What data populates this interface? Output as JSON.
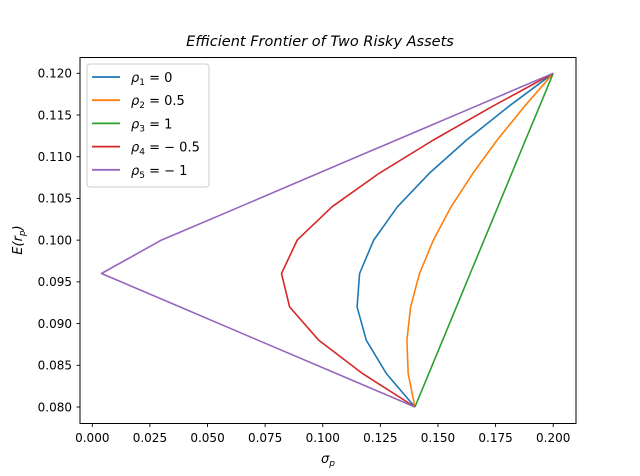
{
  "chart_data": {
    "type": "line",
    "title": "Efficient Frontier of Two Risky Assets",
    "xlabel": "σp",
    "ylabel": "E(rp)",
    "xlim": [
      -0.0098,
      0.2098
    ],
    "ylim": [
      0.078,
      0.122
    ],
    "xticks": [
      "0.000",
      "0.025",
      "0.050",
      "0.075",
      "0.100",
      "0.125",
      "0.150",
      "0.175",
      "0.200"
    ],
    "yticks": [
      "0.080",
      "0.085",
      "0.090",
      "0.095",
      "0.100",
      "0.105",
      "0.110",
      "0.115",
      "0.120"
    ],
    "grid": false,
    "legend_position": "upper left",
    "y": [
      0.08,
      0.084,
      0.088,
      0.092,
      0.096,
      0.1,
      0.104,
      0.108,
      0.112,
      0.116,
      0.12
    ],
    "series": [
      {
        "name": "ρ1 = 0",
        "label_sym": "ρ",
        "label_sub": "1",
        "label_rest": " = 0",
        "color": "#1f77b4",
        "x": [
          0.14,
          0.1276,
          0.1189,
          0.1149,
          0.116,
          0.1221,
          0.1324,
          0.1462,
          0.1624,
          0.1805,
          0.2
        ]
      },
      {
        "name": "ρ2 = 0.5",
        "label_sym": "ρ",
        "label_sub": "2",
        "label_rest": " = 0.5",
        "color": "#ff7f0e",
        "x": [
          0.14,
          0.1371,
          0.1365,
          0.1381,
          0.142,
          0.148,
          0.1557,
          0.1651,
          0.1757,
          0.1874,
          0.2
        ]
      },
      {
        "name": "ρ3 = 1",
        "label_sym": "ρ",
        "label_sub": "3",
        "label_rest": " = 1",
        "color": "#2ca02c",
        "x": [
          0.14,
          0.146,
          0.152,
          0.158,
          0.164,
          0.17,
          0.176,
          0.182,
          0.188,
          0.194,
          0.2
        ]
      },
      {
        "name": "ρ4 = −0.5",
        "label_sym": "ρ",
        "label_sub": "4",
        "label_rest": " = − 0.5",
        "color": "#d62728",
        "x": [
          0.14,
          0.1173,
          0.0983,
          0.0856,
          0.0821,
          0.0889,
          0.104,
          0.1244,
          0.148,
          0.1734,
          0.2
        ]
      },
      {
        "name": "ρ5 = −1",
        "label_sym": "ρ",
        "label_sub": "5",
        "label_rest": " = − 1",
        "color": "#9467bd",
        "x": [
          0.14,
          0.106,
          0.072,
          0.038,
          0.004,
          0.03,
          0.064,
          0.098,
          0.132,
          0.166,
          0.2
        ]
      }
    ]
  }
}
